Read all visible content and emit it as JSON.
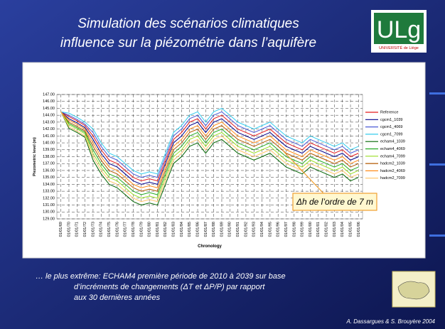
{
  "title_lines": [
    "Simulation des scénarios climatiques",
    "influence sur la piézométrie dans l’aquifère"
  ],
  "logo": {
    "text": "ULg",
    "subtitle": "UNIVERSITÉ de Liège"
  },
  "caption_lines": [
    "… le plus extrême: ECHAM4 première période de 2010 à 2039  sur base",
    "d’incréments de changements (ΔT et ΔP/P) par rapport",
    "aux 30 dernières années"
  ],
  "credit": "A. Dassargues & S. Brouyère 2004",
  "chart_data": {
    "type": "line",
    "xlabel": "Chronology",
    "ylabel": "Piezometric level (m)",
    "annotation": "Δh de l’ordre de 7 m",
    "categories": [
      "01/01/69",
      "01/01/70",
      "01/01/71",
      "01/01/72",
      "01/01/73",
      "01/01/74",
      "01/01/75",
      "01/01/76",
      "01/01/77",
      "01/01/78",
      "01/01/79",
      "01/01/80",
      "01/01/81",
      "01/01/82",
      "01/01/83",
      "01/01/84",
      "01/01/85",
      "01/01/86",
      "01/01/87",
      "01/01/88",
      "01/01/89",
      "01/01/90",
      "01/01/91",
      "01/01/92",
      "01/01/93",
      "01/01/94",
      "01/01/95",
      "01/01/96",
      "01/01/97",
      "01/01/98",
      "01/01/99",
      "01/01/00",
      "01/01/01",
      "01/01/02",
      "01/01/03",
      "01/01/04",
      "01/01/05",
      "01/01/06"
    ],
    "ylim": [
      129,
      147
    ],
    "yticks": [
      {
        "value": 129,
        "label": "129.00"
      },
      {
        "value": 130,
        "label": "130.00"
      },
      {
        "value": 131,
        "label": "131.00"
      },
      {
        "value": 132,
        "label": "132.00"
      },
      {
        "value": 133,
        "label": "133.00"
      },
      {
        "value": 134,
        "label": "134.00"
      },
      {
        "value": 135,
        "label": "135.00"
      },
      {
        "value": 136,
        "label": "136.00"
      },
      {
        "value": 137,
        "label": "137.00"
      },
      {
        "value": 138,
        "label": "138.00"
      },
      {
        "value": 139,
        "label": "139.00"
      },
      {
        "value": 140,
        "label": "140.00"
      },
      {
        "value": 141,
        "label": "141.00"
      },
      {
        "value": 142,
        "label": "142.00"
      },
      {
        "value": 143,
        "label": "143.00"
      },
      {
        "value": 144,
        "label": "144.00"
      },
      {
        "value": 145,
        "label": "145.00"
      },
      {
        "value": 146,
        "label": "146.00"
      },
      {
        "value": 147,
        "label": "147.00"
      }
    ],
    "grid": true,
    "legend": "right",
    "series": [
      {
        "name": "Reference",
        "color": "#e41a1c",
        "values": [
          144.5,
          143.8,
          143.2,
          142.5,
          141.0,
          139.0,
          137.5,
          137.0,
          136.0,
          135.0,
          134.5,
          134.8,
          134.5,
          137.5,
          140.5,
          141.5,
          143.0,
          143.5,
          142.0,
          143.5,
          144.0,
          143.0,
          142.0,
          141.5,
          141.0,
          141.5,
          142.0,
          141.0,
          140.0,
          139.5,
          139.0,
          140.0,
          139.5,
          139.0,
          138.5,
          139.0,
          138.0,
          138.5
        ]
      },
      {
        "name": "cgcm1_1039",
        "color": "#00008b",
        "values": [
          144.5,
          143.5,
          142.9,
          142.2,
          140.5,
          138.5,
          137.0,
          136.5,
          135.5,
          134.5,
          134.0,
          134.3,
          134.0,
          137.0,
          140.0,
          141.0,
          142.5,
          143.0,
          141.5,
          143.0,
          143.5,
          142.5,
          141.5,
          141.0,
          140.5,
          141.0,
          141.5,
          140.5,
          139.5,
          139.0,
          138.5,
          139.5,
          139.0,
          138.5,
          138.0,
          138.5,
          137.5,
          138.0
        ]
      },
      {
        "name": "cgcm1_4069",
        "color": "#4b5bd6",
        "values": [
          144.5,
          144.0,
          143.4,
          142.7,
          141.5,
          139.5,
          138.0,
          137.5,
          136.5,
          135.5,
          135.0,
          135.3,
          135.0,
          138.0,
          141.0,
          142.0,
          143.5,
          144.0,
          142.5,
          144.0,
          144.5,
          143.5,
          142.5,
          142.0,
          141.5,
          142.0,
          142.5,
          141.5,
          140.5,
          140.0,
          139.5,
          140.5,
          140.0,
          139.5,
          139.0,
          139.5,
          138.5,
          139.0
        ]
      },
      {
        "name": "cgcm1_7099",
        "color": "#33ccee",
        "values": [
          144.5,
          144.3,
          143.7,
          143.0,
          142.0,
          140.0,
          138.5,
          138.0,
          137.0,
          136.0,
          135.5,
          135.8,
          135.5,
          138.5,
          141.5,
          142.5,
          144.0,
          144.5,
          143.0,
          144.5,
          145.0,
          144.0,
          143.0,
          142.5,
          142.0,
          142.5,
          143.0,
          142.0,
          141.0,
          140.5,
          140.0,
          141.0,
          140.5,
          140.0,
          139.5,
          140.0,
          139.0,
          139.5
        ]
      },
      {
        "name": "echam4_1039",
        "color": "#006400",
        "values": [
          144.5,
          142.1,
          141.5,
          140.8,
          137.5,
          135.5,
          134.0,
          133.5,
          132.5,
          131.5,
          131.0,
          131.3,
          131.0,
          134.0,
          137.0,
          138.0,
          139.5,
          140.0,
          138.5,
          140.0,
          140.5,
          139.5,
          138.5,
          138.0,
          137.5,
          138.0,
          138.5,
          137.5,
          136.5,
          136.0,
          135.5,
          136.5,
          136.0,
          135.5,
          135.0,
          135.5,
          134.5,
          135.0
        ]
      },
      {
        "name": "echam4_4069",
        "color": "#22aa22",
        "values": [
          144.5,
          142.8,
          142.2,
          141.5,
          139.0,
          137.0,
          135.5,
          135.0,
          134.0,
          133.0,
          132.5,
          132.8,
          132.5,
          135.5,
          138.5,
          139.5,
          141.0,
          141.5,
          140.0,
          141.5,
          142.0,
          141.0,
          140.0,
          139.5,
          139.0,
          139.5,
          140.0,
          139.0,
          138.0,
          137.5,
          137.0,
          138.0,
          137.5,
          137.0,
          136.5,
          137.0,
          136.0,
          136.5
        ]
      },
      {
        "name": "echam4_7099",
        "color": "#99dd22",
        "values": [
          144.5,
          142.6,
          142.0,
          141.3,
          138.5,
          136.5,
          135.0,
          134.5,
          133.5,
          132.5,
          132.0,
          132.3,
          132.0,
          135.0,
          138.0,
          139.0,
          140.5,
          141.0,
          139.5,
          141.0,
          141.5,
          140.5,
          139.5,
          139.0,
          138.5,
          139.0,
          139.5,
          138.5,
          137.5,
          137.0,
          136.5,
          137.5,
          137.0,
          136.5,
          136.0,
          136.5,
          135.5,
          136.0
        ]
      },
      {
        "name": "hadcm2_1039",
        "color": "#b35900",
        "values": [
          144.5,
          143.0,
          142.4,
          141.7,
          139.5,
          137.5,
          136.0,
          135.5,
          134.5,
          133.5,
          133.0,
          133.3,
          133.0,
          136.0,
          139.0,
          140.0,
          141.5,
          142.0,
          140.5,
          142.0,
          142.5,
          141.5,
          140.5,
          140.0,
          139.5,
          140.0,
          140.5,
          139.5,
          138.5,
          138.0,
          137.5,
          138.5,
          138.0,
          137.5,
          137.0,
          137.5,
          136.5,
          137.0
        ]
      },
      {
        "name": "hadcm2_4069",
        "color": "#ff8c1a",
        "values": [
          144.5,
          143.3,
          142.7,
          142.0,
          140.0,
          138.0,
          136.5,
          136.0,
          135.0,
          134.0,
          133.5,
          133.8,
          133.5,
          136.5,
          139.5,
          140.5,
          142.0,
          142.5,
          141.0,
          142.5,
          143.0,
          142.0,
          141.0,
          140.5,
          140.0,
          140.5,
          141.0,
          140.0,
          139.0,
          138.5,
          138.0,
          139.0,
          138.5,
          138.0,
          137.5,
          138.0,
          137.0,
          137.5
        ]
      },
      {
        "name": "hadcm2_7099",
        "color": "#ffc266",
        "values": [
          144.5,
          142.3,
          141.7,
          141.0,
          138.0,
          136.0,
          134.5,
          134.0,
          133.0,
          132.0,
          131.5,
          131.8,
          131.5,
          134.5,
          137.5,
          138.5,
          140.0,
          140.5,
          139.0,
          140.5,
          141.0,
          140.0,
          139.0,
          138.5,
          138.0,
          138.5,
          139.0,
          138.0,
          137.0,
          136.5,
          136.0,
          137.0,
          136.5,
          136.0,
          135.5,
          136.0,
          135.0,
          135.5
        ]
      }
    ]
  }
}
